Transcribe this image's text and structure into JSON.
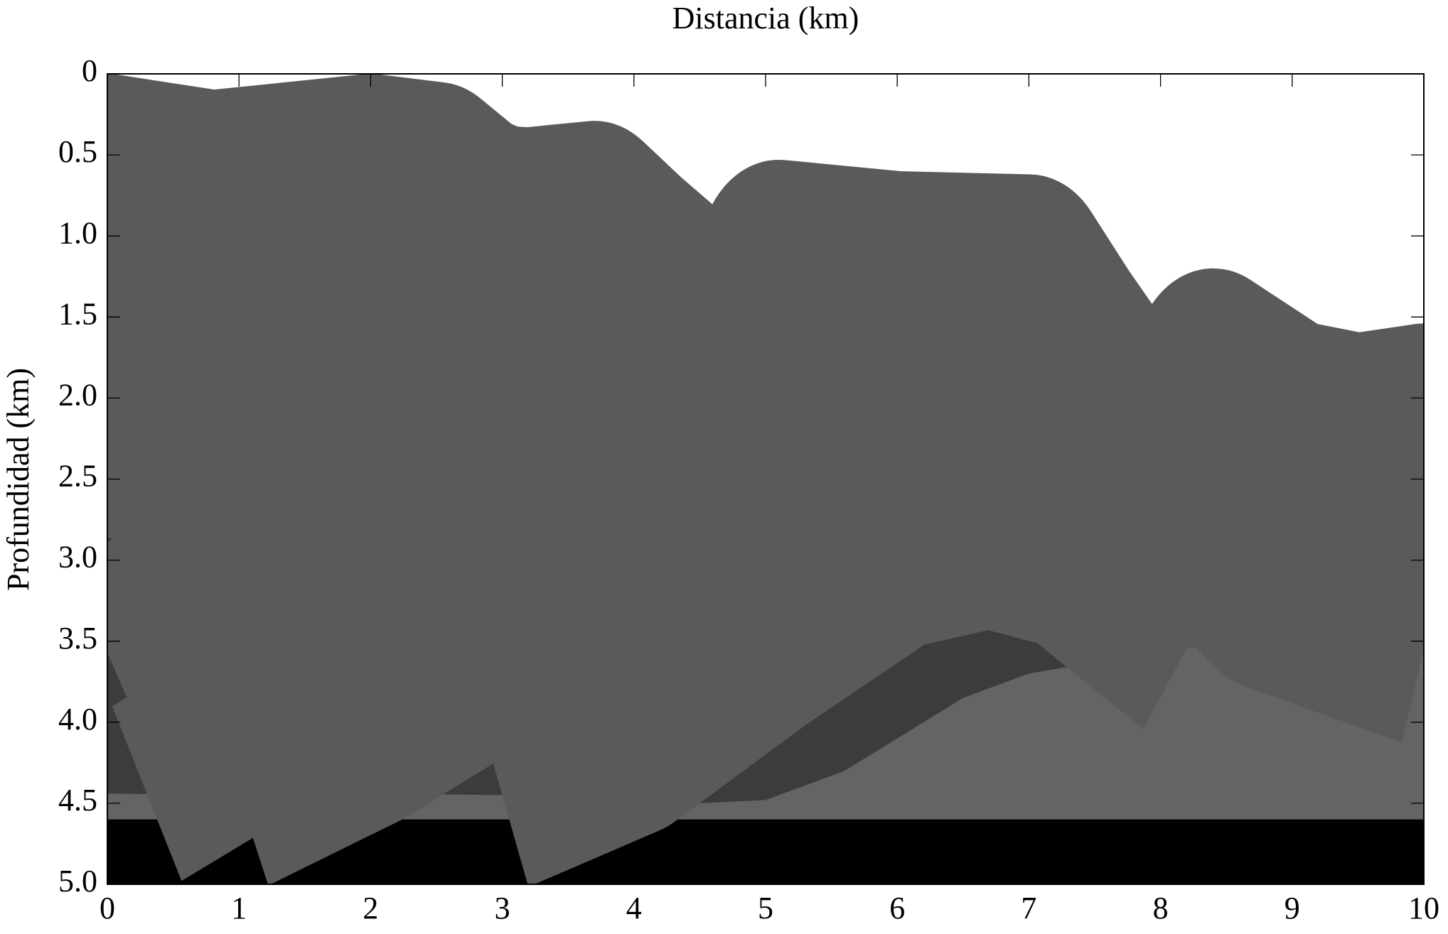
{
  "chart_data": {
    "type": "section",
    "title": "Distancia (km)",
    "y_label": "Profundidad (km)",
    "xlim": [
      0,
      10
    ],
    "xticks": [
      0,
      1,
      2,
      3,
      4,
      5,
      6,
      7,
      8,
      9,
      10
    ],
    "ylim": [
      0,
      5
    ],
    "y_inverted": true,
    "yticks": [
      0,
      0.5,
      {
        "value": 1,
        "label": "1.0"
      },
      1.5,
      {
        "value": 2,
        "label": "2.0"
      },
      2.5,
      {
        "value": 3,
        "label": "3.0"
      },
      3.5,
      {
        "value": 4,
        "label": "4.0"
      },
      4.5,
      {
        "value": 5,
        "label": "5.0"
      }
    ],
    "grid": false
  }
}
